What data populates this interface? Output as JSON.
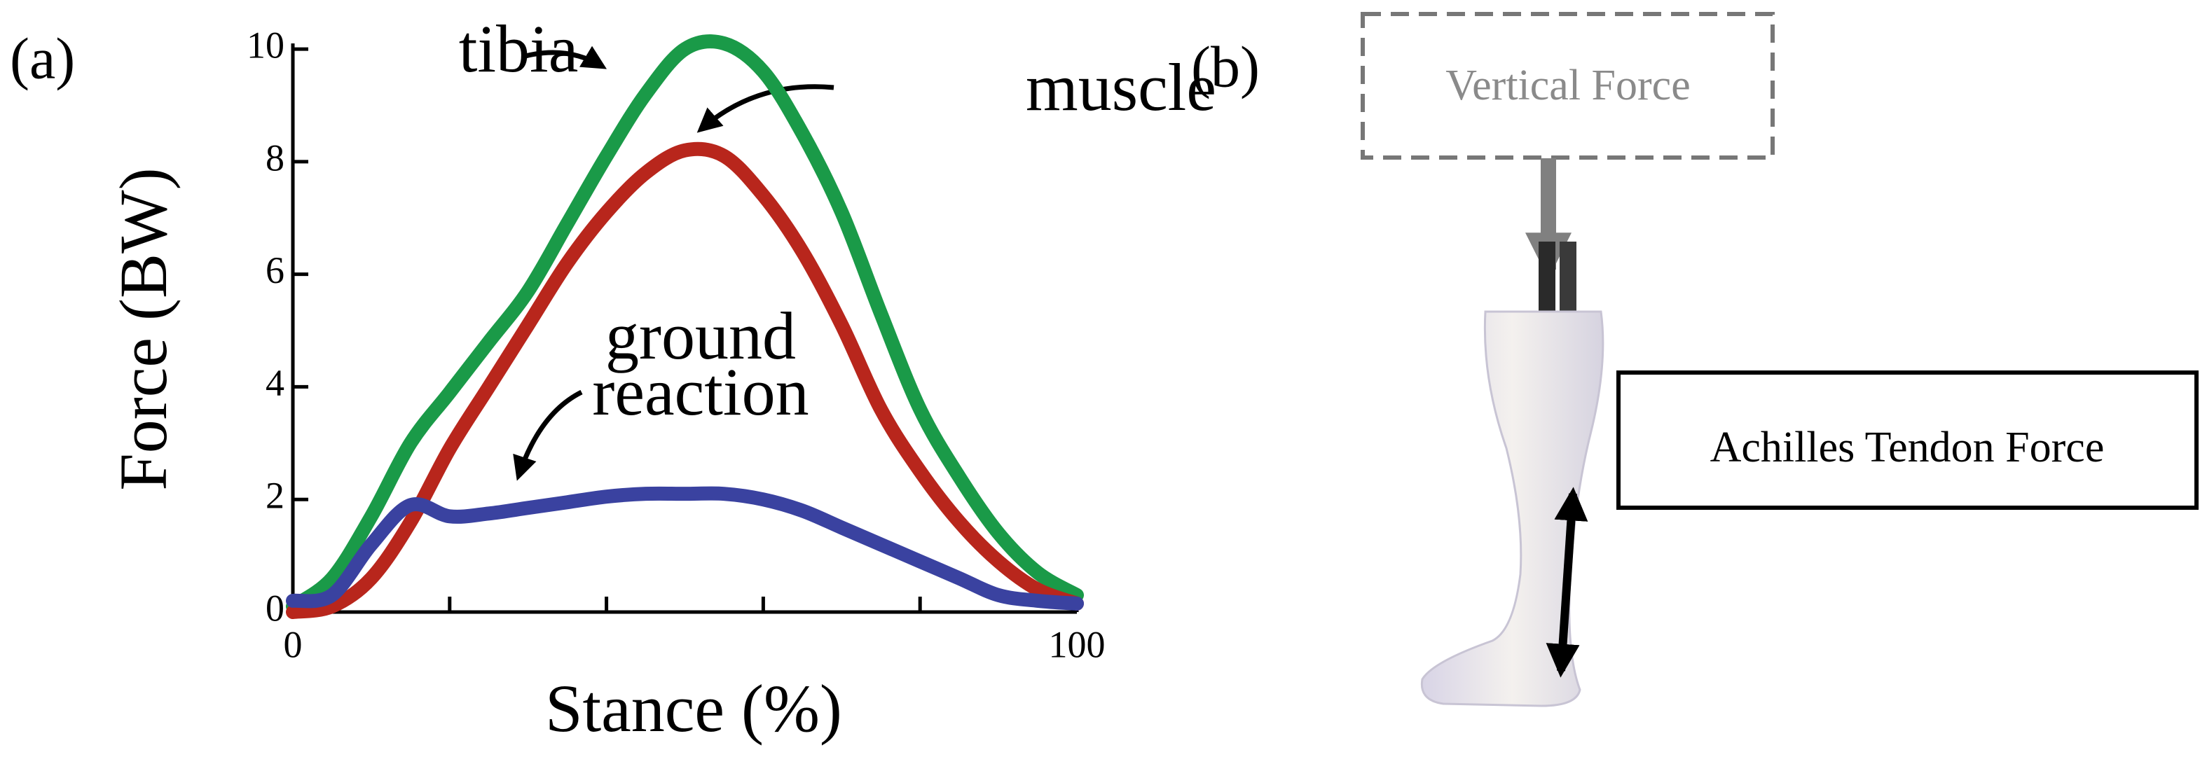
{
  "chart_data": {
    "type": "line",
    "x": [
      0,
      5,
      10,
      15,
      20,
      25,
      30,
      35,
      40,
      45,
      50,
      55,
      60,
      65,
      70,
      75,
      80,
      85,
      90,
      95,
      100
    ],
    "series": [
      {
        "name": "tibia",
        "color": "#1a9a48",
        "values": [
          0.1,
          0.6,
          1.7,
          3.0,
          3.9,
          4.8,
          5.7,
          6.9,
          8.1,
          9.2,
          10.0,
          10.1,
          9.6,
          8.5,
          7.1,
          5.3,
          3.6,
          2.4,
          1.4,
          0.7,
          0.3
        ]
      },
      {
        "name": "muscle",
        "color": "#b8261c",
        "values": [
          0,
          0.1,
          0.6,
          1.6,
          2.9,
          4.0,
          5.1,
          6.2,
          7.1,
          7.8,
          8.2,
          8.1,
          7.4,
          6.4,
          5.1,
          3.6,
          2.5,
          1.6,
          0.9,
          0.4,
          0.15
        ]
      },
      {
        "name": "ground reaction",
        "color": "#3a42a0",
        "values": [
          0.2,
          0.3,
          1.2,
          1.9,
          1.7,
          1.75,
          1.85,
          1.95,
          2.05,
          2.1,
          2.1,
          2.1,
          2.0,
          1.8,
          1.5,
          1.2,
          0.9,
          0.6,
          0.3,
          0.2,
          0.15
        ]
      }
    ],
    "xlabel": "Stance (%)",
    "ylabel": "Force (BW)",
    "xlim": [
      0,
      100
    ],
    "ylim": [
      0,
      10.2
    ],
    "xticks": [
      0,
      100
    ],
    "xminorticks": [
      20,
      40,
      60,
      80
    ],
    "yticks": [
      0,
      2,
      4,
      6,
      8,
      10
    ]
  },
  "panel_labels": [
    "(a)",
    "(b)"
  ],
  "diagram": {
    "top_box": "Vertical Force",
    "side_box": "Achilles Tendon Force"
  }
}
